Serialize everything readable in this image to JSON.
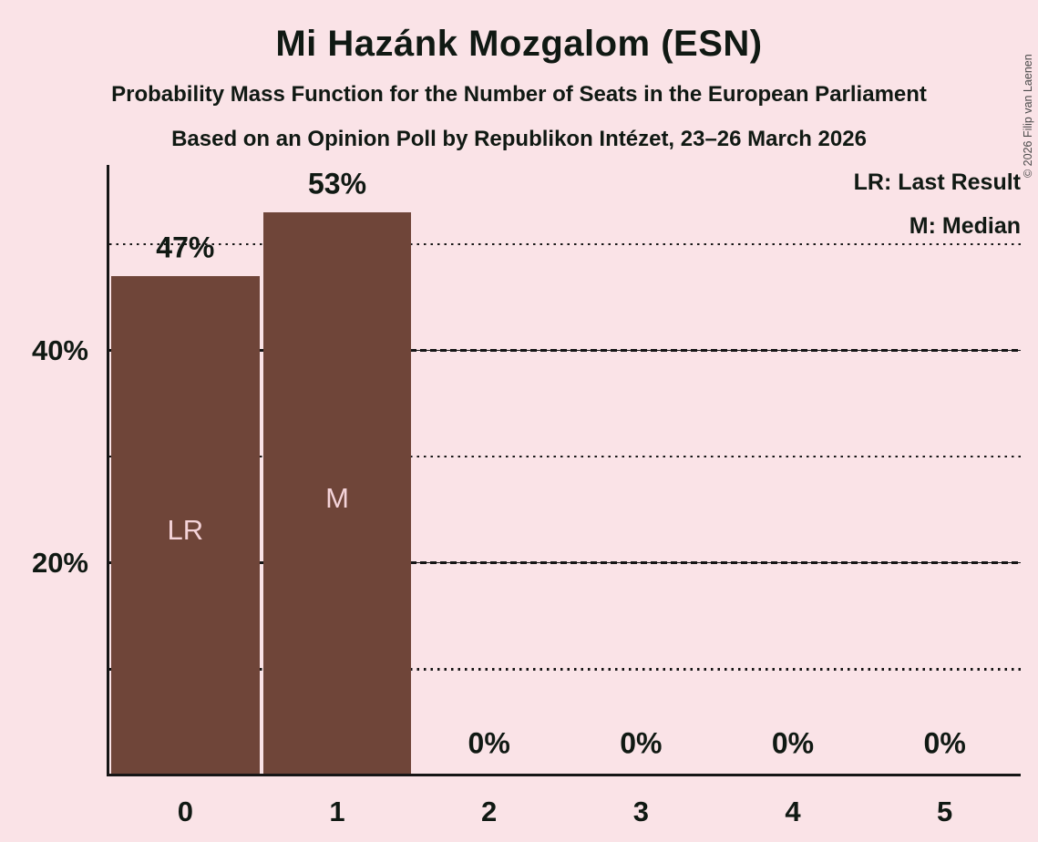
{
  "header": {
    "title": "Mi Hazánk Mozgalom (ESN)",
    "subtitle": "Probability Mass Function for the Number of Seats in the European Parliament",
    "poll_line": "Based on an Opinion Poll by Republikon Intézet, 23–26 March 2026"
  },
  "legend": {
    "last_result": "LR: Last Result",
    "median": "M: Median"
  },
  "copyright": "© 2026 Filip van Laenen",
  "colors": {
    "background": "#fae3e7",
    "bar": "#6f4539",
    "bar_label": "#f4d3d9",
    "text": "#101913",
    "grid": "#161616"
  },
  "chart_data": {
    "type": "bar",
    "title": "Mi Hazánk Mozgalom (ESN)",
    "subtitle": "Probability Mass Function for the Number of Seats in the European Parliament",
    "source_line": "Based on an Opinion Poll by Republikon Intézet, 23–26 March 2026",
    "categories": [
      "0",
      "1",
      "2",
      "3",
      "4",
      "5"
    ],
    "values": [
      47,
      53,
      0,
      0,
      0,
      0
    ],
    "value_labels": [
      "47%",
      "53%",
      "0%",
      "0%",
      "0%",
      "0%"
    ],
    "bar_annotations": [
      "LR",
      "M",
      "",
      "",
      "",
      ""
    ],
    "annotation_meanings": {
      "LR": "Last Result",
      "M": "Median"
    },
    "ylabel": "",
    "xlabel": "",
    "ylim": [
      0,
      57.5
    ],
    "yticks": [
      {
        "pct": 20,
        "label": "20%"
      },
      {
        "pct": 40,
        "label": "40%"
      }
    ],
    "gridlines": [
      {
        "pct": 10,
        "style": "dotted"
      },
      {
        "pct": 20,
        "style": "dashed"
      },
      {
        "pct": 30,
        "style": "dotted"
      },
      {
        "pct": 40,
        "style": "dashed"
      },
      {
        "pct": 50,
        "style": "dotted"
      }
    ],
    "grid": true,
    "legend_position": "top-right",
    "legend_entries": [
      "LR: Last Result",
      "M: Median"
    ]
  }
}
